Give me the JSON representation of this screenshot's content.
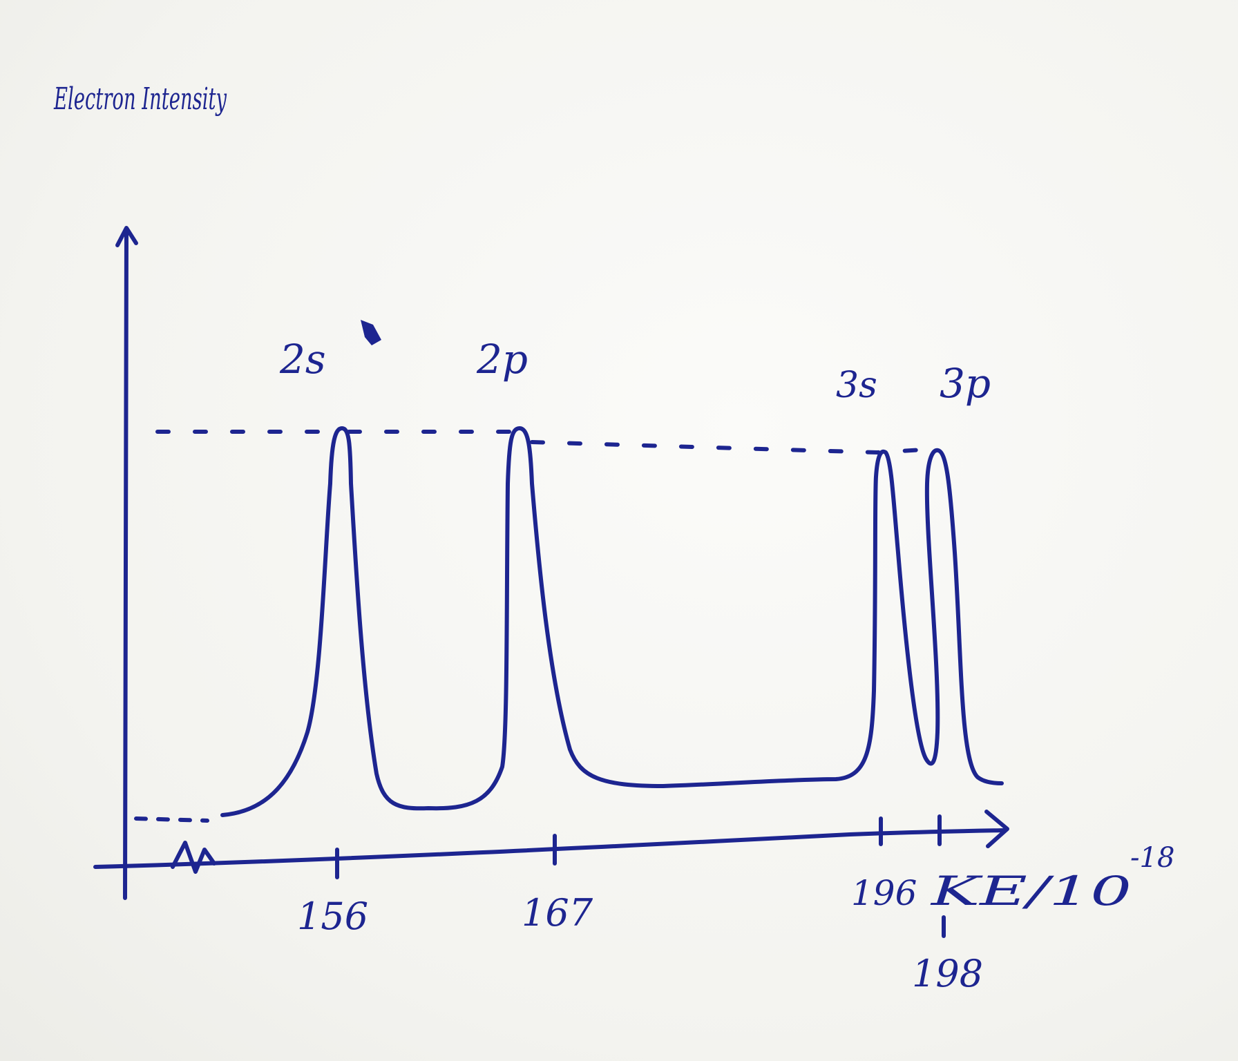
{
  "chart_data": {
    "type": "line",
    "ylabel": "Electron Intensity",
    "xlabel": "KE/10",
    "xlabel_exponent": "-18",
    "x_ticks": [
      "156",
      "167",
      "196",
      "198"
    ],
    "axis_break": true,
    "peaks": [
      {
        "label": "2s",
        "x": 156,
        "relative_intensity": 1.0
      },
      {
        "label": "2p",
        "x": 167,
        "relative_intensity": 1.0
      },
      {
        "label": "3s",
        "x": 196,
        "relative_intensity": 1.0
      },
      {
        "label": "3p",
        "x": 198,
        "relative_intensity": 1.0
      }
    ],
    "reference_line": "dashed line at peak height",
    "grid": false,
    "colors": {
      "ink": "#1d2590"
    }
  }
}
